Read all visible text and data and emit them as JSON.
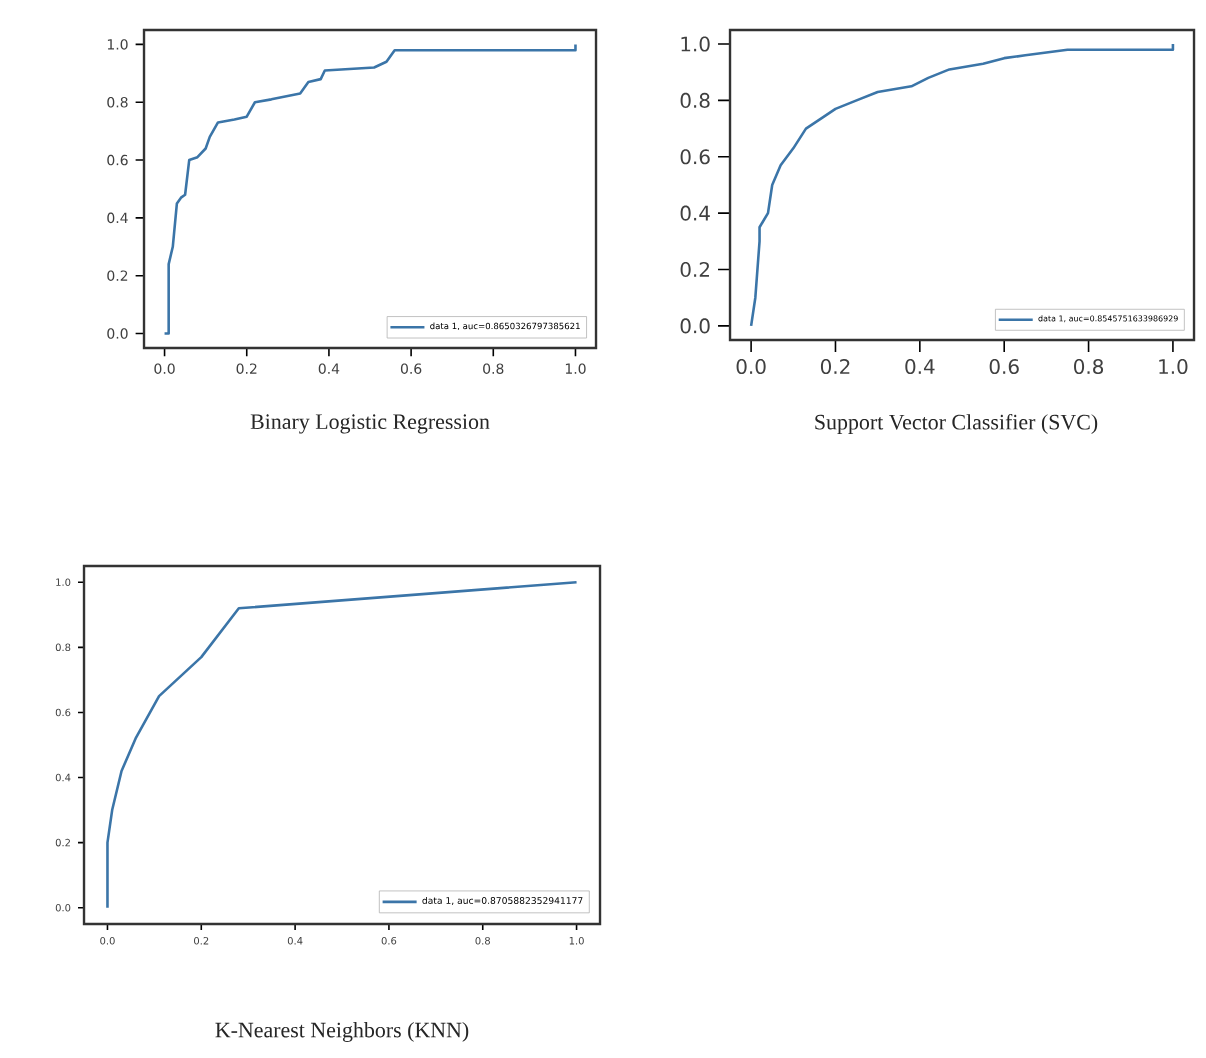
{
  "chart_data": [
    {
      "type": "line",
      "title": "Binary Logistic Regression",
      "legend": "bottom right",
      "xlim": [
        -0.05,
        1.05
      ],
      "ylim": [
        -0.05,
        1.05
      ],
      "xticks": [
        {
          "value": 0,
          "label": "0.0"
        },
        {
          "value": 0.2,
          "label": "0.2"
        },
        {
          "value": 0.4,
          "label": "0.4"
        },
        {
          "value": 0.6,
          "label": "0.6"
        },
        {
          "value": 0.8,
          "label": "0.8"
        },
        {
          "value": 1,
          "label": "1.0"
        }
      ],
      "yticks": [
        {
          "value": 0,
          "label": "0.0"
        },
        {
          "value": 0.2,
          "label": "0.2"
        },
        {
          "value": 0.4,
          "label": "0.4"
        },
        {
          "value": 0.6,
          "label": "0.6"
        },
        {
          "value": 0.8,
          "label": "0.8"
        },
        {
          "value": 1,
          "label": "1.0"
        }
      ],
      "series": [
        {
          "name": "data 1, auc=0.8650326797385621",
          "color": "#3b75a8",
          "x": [
            0,
            0.01,
            0.01,
            0.02,
            0.03,
            0.04,
            0.05,
            0.06,
            0.08,
            0.1,
            0.11,
            0.13,
            0.17,
            0.2,
            0.22,
            0.26,
            0.33,
            0.35,
            0.38,
            0.39,
            0.51,
            0.54,
            0.56,
            1.0,
            1.0
          ],
          "values": [
            0,
            0,
            0.24,
            0.3,
            0.45,
            0.47,
            0.48,
            0.6,
            0.61,
            0.64,
            0.68,
            0.73,
            0.74,
            0.75,
            0.8,
            0.81,
            0.83,
            0.87,
            0.88,
            0.91,
            0.92,
            0.94,
            0.98,
            0.98,
            1.0
          ]
        }
      ]
    },
    {
      "type": "line",
      "title": "Support Vector Classifier (SVC)",
      "legend": "bottom right",
      "xlim": [
        -0.05,
        1.05
      ],
      "ylim": [
        -0.05,
        1.05
      ],
      "xticks": [
        {
          "value": 0,
          "label": "0.0"
        },
        {
          "value": 0.2,
          "label": "0.2"
        },
        {
          "value": 0.4,
          "label": "0.4"
        },
        {
          "value": 0.6,
          "label": "0.6"
        },
        {
          "value": 0.8,
          "label": "0.8"
        },
        {
          "value": 1,
          "label": "1.0"
        }
      ],
      "yticks": [
        {
          "value": 0,
          "label": "0.0"
        },
        {
          "value": 0.2,
          "label": "0.2"
        },
        {
          "value": 0.4,
          "label": "0.4"
        },
        {
          "value": 0.6,
          "label": "0.6"
        },
        {
          "value": 0.8,
          "label": "0.8"
        },
        {
          "value": 1,
          "label": "1.0"
        }
      ],
      "series": [
        {
          "name": "data 1, auc=0.8545751633986929",
          "color": "#3b75a8",
          "x": [
            0,
            0.01,
            0.02,
            0.02,
            0.04,
            0.05,
            0.07,
            0.1,
            0.13,
            0.17,
            0.2,
            0.25,
            0.3,
            0.38,
            0.42,
            0.47,
            0.55,
            0.6,
            0.65,
            0.75,
            1.0,
            1.0
          ],
          "values": [
            0,
            0.1,
            0.3,
            0.35,
            0.4,
            0.5,
            0.57,
            0.63,
            0.7,
            0.74,
            0.77,
            0.8,
            0.83,
            0.85,
            0.88,
            0.91,
            0.93,
            0.95,
            0.96,
            0.98,
            0.98,
            1.0
          ]
        }
      ]
    },
    {
      "type": "line",
      "title": "K-Nearest Neighbors (KNN)",
      "legend": "bottom right",
      "xlim": [
        -0.05,
        1.05
      ],
      "ylim": [
        -0.05,
        1.05
      ],
      "xticks": [
        {
          "value": 0,
          "label": "0.0"
        },
        {
          "value": 0.2,
          "label": "0.2"
        },
        {
          "value": 0.4,
          "label": "0.4"
        },
        {
          "value": 0.6,
          "label": "0.6"
        },
        {
          "value": 0.8,
          "label": "0.8"
        },
        {
          "value": 1,
          "label": "1.0"
        }
      ],
      "yticks": [
        {
          "value": 0,
          "label": "0.0"
        },
        {
          "value": 0.2,
          "label": "0.2"
        },
        {
          "value": 0.4,
          "label": "0.4"
        },
        {
          "value": 0.6,
          "label": "0.6"
        },
        {
          "value": 0.8,
          "label": "0.8"
        },
        {
          "value": 1,
          "label": "1.0"
        }
      ],
      "series": [
        {
          "name": "data 1, auc=0.8705882352941177",
          "color": "#3b75a8",
          "x": [
            0,
            0.0,
            0.01,
            0.03,
            0.06,
            0.11,
            0.2,
            0.28,
            1.0
          ],
          "values": [
            0,
            0.2,
            0.3,
            0.42,
            0.52,
            0.65,
            0.77,
            0.92,
            1.0
          ]
        }
      ]
    }
  ]
}
